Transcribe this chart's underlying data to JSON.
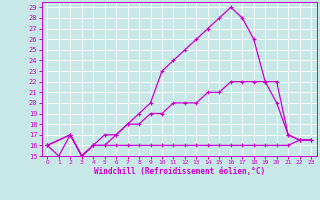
{
  "xlabel": "Windchill (Refroidissement éolien,°C)",
  "bg_color": "#c8e8e8",
  "grid_color": "#ffffff",
  "line_color": "#cc00cc",
  "xlim": [
    -0.5,
    23.5
  ],
  "ylim": [
    15,
    29.5
  ],
  "xticks": [
    0,
    1,
    2,
    3,
    4,
    5,
    6,
    7,
    8,
    9,
    10,
    11,
    12,
    13,
    14,
    15,
    16,
    17,
    18,
    19,
    20,
    21,
    22,
    23
  ],
  "yticks": [
    15,
    16,
    17,
    18,
    19,
    20,
    21,
    22,
    23,
    24,
    25,
    26,
    27,
    28,
    29
  ],
  "line1": {
    "x": [
      0,
      1,
      2,
      3,
      4,
      5,
      6,
      7,
      8,
      9,
      10,
      11,
      12,
      13,
      14,
      15,
      16,
      17,
      18,
      19,
      20,
      21,
      22,
      23
    ],
    "y": [
      16,
      15,
      17,
      15,
      16,
      16,
      16,
      16,
      16,
      16,
      16,
      16,
      16,
      16,
      16,
      16,
      16,
      16,
      16,
      16,
      16,
      16,
      16.5,
      16.5
    ]
  },
  "line2": {
    "x": [
      0,
      2,
      3,
      4,
      5,
      6,
      7,
      8,
      9,
      10,
      11,
      12,
      13,
      14,
      15,
      16,
      17,
      18,
      19,
      20,
      21,
      22,
      23
    ],
    "y": [
      16,
      17,
      15,
      16,
      16,
      17,
      18,
      18,
      19,
      19,
      20,
      20,
      20,
      21,
      21,
      22,
      22,
      22,
      22,
      22,
      17,
      16.5,
      16.5
    ]
  },
  "line3": {
    "x": [
      0,
      2,
      3,
      4,
      5,
      6,
      7,
      8,
      9,
      10,
      11,
      12,
      13,
      14,
      15,
      16,
      17,
      18,
      19,
      20,
      21,
      22,
      23
    ],
    "y": [
      16,
      17,
      15,
      16,
      17,
      17,
      18,
      19,
      20,
      23,
      24,
      25,
      26,
      27,
      28,
      29,
      28,
      26,
      22,
      20,
      17,
      16.5,
      16.5
    ]
  }
}
